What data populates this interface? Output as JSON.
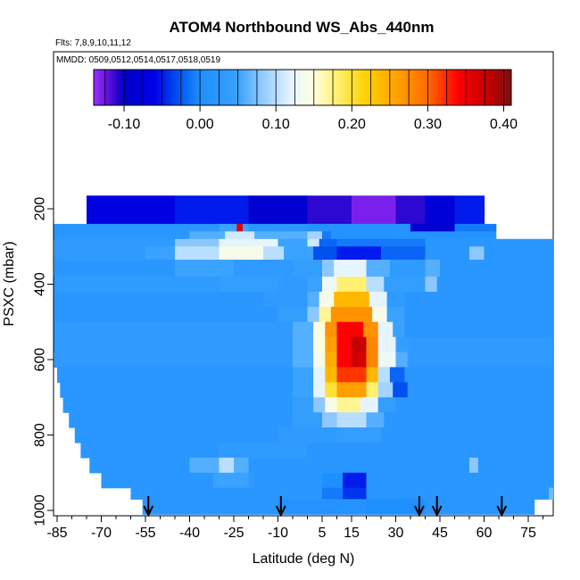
{
  "chart_data": {
    "type": "heatmap",
    "title": "ATOM4 Northbound WS_Abs_440nm",
    "subtitle_flights": "Flts: 7,8,9,10,11,12",
    "subtitle_dates": "MMDD: 0509,0512,0514,0517,0518,0519",
    "xlabel": "Latitude (deg N)",
    "ylabel": "PSXC (mbar)",
    "xlim": [
      -87,
      85
    ],
    "ylim": [
      1020,
      100
    ],
    "x_ticks": [
      -85,
      -70,
      -55,
      -40,
      -25,
      -10,
      5,
      15,
      30,
      45,
      60,
      75
    ],
    "y_ticks": [
      200,
      400,
      600,
      800,
      1000
    ],
    "colorbar": {
      "range": [
        -0.14,
        0.41
      ],
      "ticks": [
        "-0.10",
        "0.00",
        "0.10",
        "0.20",
        "0.30",
        "0.40"
      ],
      "tick_values": [
        -0.1,
        0.0,
        0.1,
        0.2,
        0.3,
        0.4
      ],
      "stops": [
        {
          "v": -0.14,
          "c": "#9b30ff"
        },
        {
          "v": -0.12,
          "c": "#5a10d8"
        },
        {
          "v": -0.1,
          "c": "#0000c8"
        },
        {
          "v": -0.06,
          "c": "#0000e8"
        },
        {
          "v": -0.03,
          "c": "#0050f0"
        },
        {
          "v": 0.0,
          "c": "#1e8fff"
        },
        {
          "v": 0.05,
          "c": "#3aa2ff"
        },
        {
          "v": 0.08,
          "c": "#8cc8ff"
        },
        {
          "v": 0.12,
          "c": "#e6f4ff"
        },
        {
          "v": 0.15,
          "c": "#ffffe0"
        },
        {
          "v": 0.18,
          "c": "#fff070"
        },
        {
          "v": 0.22,
          "c": "#ffd000"
        },
        {
          "v": 0.26,
          "c": "#ffa000"
        },
        {
          "v": 0.3,
          "c": "#ff6a00"
        },
        {
          "v": 0.34,
          "c": "#ff0000"
        },
        {
          "v": 0.38,
          "c": "#c40000"
        },
        {
          "v": 0.41,
          "c": "#7a1010"
        }
      ]
    },
    "arrows_latitude": [
      -54,
      -9,
      38,
      44,
      66
    ],
    "background_value": 0.02,
    "rows": [
      {
        "p_top": 165,
        "p_bot": 240,
        "x_start": -75,
        "x_end": 60,
        "pieces": [
          [
            -75,
            -45,
            -0.07
          ],
          [
            -45,
            -20,
            -0.05
          ],
          [
            -20,
            0,
            -0.09
          ],
          [
            0,
            15,
            -0.11
          ],
          [
            15,
            30,
            -0.13
          ],
          [
            30,
            40,
            -0.11
          ],
          [
            40,
            50,
            -0.08
          ],
          [
            50,
            60,
            -0.05
          ]
        ]
      },
      {
        "p_top": 240,
        "p_bot": 260,
        "x_start": -87,
        "x_end": 64,
        "pieces": [
          [
            -87,
            -30,
            0.02
          ],
          [
            -30,
            -24,
            0.05
          ],
          [
            -24,
            -22,
            0.36
          ],
          [
            -22,
            -20,
            0.05
          ],
          [
            -20,
            0,
            0.02
          ],
          [
            0,
            35,
            0.01
          ],
          [
            35,
            50,
            -0.09
          ],
          [
            50,
            64,
            -0.01
          ]
        ]
      },
      {
        "p_top": 260,
        "p_bot": 280,
        "x_start": -87,
        "x_end": 64,
        "pieces": [
          [
            -87,
            -40,
            0.02
          ],
          [
            -40,
            -28,
            0.06
          ],
          [
            -28,
            -18,
            0.11
          ],
          [
            -18,
            0,
            0.06
          ],
          [
            0,
            5,
            0.09
          ],
          [
            5,
            8,
            -0.01
          ],
          [
            8,
            64,
            0.01
          ]
        ]
      },
      {
        "p_top": 280,
        "p_bot": 300,
        "x_start": -86,
        "x_end": 85,
        "pieces": [
          [
            -86,
            -45,
            0.03
          ],
          [
            -45,
            -30,
            0.08
          ],
          [
            -30,
            -10,
            0.12
          ],
          [
            -10,
            0,
            0.05
          ],
          [
            0,
            4,
            0.11
          ],
          [
            4,
            10,
            -0.02
          ],
          [
            10,
            40,
            -0.01
          ],
          [
            40,
            85,
            0.02
          ]
        ]
      },
      {
        "p_top": 300,
        "p_bot": 335,
        "x_start": -86,
        "x_end": 85,
        "pieces": [
          [
            -86,
            -55,
            0.03
          ],
          [
            -55,
            -45,
            0.05
          ],
          [
            -45,
            -30,
            0.1
          ],
          [
            -30,
            -15,
            0.14
          ],
          [
            -15,
            -8,
            0.1
          ],
          [
            -8,
            2,
            0.05
          ],
          [
            2,
            10,
            -0.03
          ],
          [
            10,
            25,
            -0.05
          ],
          [
            25,
            40,
            -0.02
          ],
          [
            40,
            55,
            0.02
          ],
          [
            55,
            60,
            0.08
          ],
          [
            60,
            85,
            0.02
          ]
        ]
      },
      {
        "p_top": 335,
        "p_bot": 380,
        "x_start": -86,
        "x_end": 85,
        "pieces": [
          [
            -86,
            -45,
            0.02
          ],
          [
            -45,
            -25,
            0.05
          ],
          [
            -25,
            -5,
            0.03
          ],
          [
            -5,
            5,
            0.04
          ],
          [
            5,
            9,
            0.08
          ],
          [
            9,
            20,
            0.12
          ],
          [
            20,
            28,
            0.06
          ],
          [
            28,
            40,
            0.03
          ],
          [
            40,
            45,
            0.06
          ],
          [
            45,
            85,
            0.02
          ]
        ]
      },
      {
        "p_top": 380,
        "p_bot": 420,
        "x_start": -87,
        "x_end": 85,
        "pieces": [
          [
            -87,
            -30,
            0.03
          ],
          [
            -30,
            -10,
            0.04
          ],
          [
            -10,
            0,
            0.03
          ],
          [
            0,
            5,
            0.05
          ],
          [
            5,
            10,
            0.13
          ],
          [
            10,
            20,
            0.18
          ],
          [
            20,
            26,
            0.1
          ],
          [
            26,
            40,
            0.04
          ],
          [
            40,
            44,
            0.08
          ],
          [
            44,
            85,
            0.02
          ]
        ]
      },
      {
        "p_top": 420,
        "p_bot": 460,
        "x_start": -87,
        "x_end": 85,
        "pieces": [
          [
            -87,
            -15,
            0.02
          ],
          [
            -15,
            0,
            0.03
          ],
          [
            0,
            4,
            0.06
          ],
          [
            4,
            9,
            0.14
          ],
          [
            9,
            21,
            0.24
          ],
          [
            21,
            27,
            0.12
          ],
          [
            27,
            33,
            0.03
          ],
          [
            33,
            85,
            0.02
          ]
        ]
      },
      {
        "p_top": 460,
        "p_bot": 500,
        "x_start": -87,
        "x_end": 85,
        "pieces": [
          [
            -87,
            -10,
            0.02
          ],
          [
            -10,
            0,
            0.04
          ],
          [
            0,
            4,
            0.08
          ],
          [
            4,
            8,
            0.17
          ],
          [
            8,
            22,
            0.27
          ],
          [
            22,
            27,
            0.14
          ],
          [
            27,
            33,
            0.05
          ],
          [
            33,
            85,
            0.02
          ]
        ]
      },
      {
        "p_top": 500,
        "p_bot": 540,
        "x_start": -87,
        "x_end": 85,
        "pieces": [
          [
            -87,
            -5,
            0.03
          ],
          [
            -5,
            2,
            0.06
          ],
          [
            2,
            6,
            0.15
          ],
          [
            6,
            10,
            0.27
          ],
          [
            10,
            19,
            0.34
          ],
          [
            19,
            24,
            0.27
          ],
          [
            24,
            29,
            0.12
          ],
          [
            29,
            33,
            0.05
          ],
          [
            33,
            85,
            0.02
          ]
        ]
      },
      {
        "p_top": 540,
        "p_bot": 580,
        "x_start": -87,
        "x_end": 85,
        "pieces": [
          [
            -87,
            -5,
            0.03
          ],
          [
            -5,
            2,
            0.06
          ],
          [
            2,
            6,
            0.15
          ],
          [
            6,
            10,
            0.26
          ],
          [
            10,
            15,
            0.34
          ],
          [
            15,
            20,
            0.38
          ],
          [
            20,
            24,
            0.28
          ],
          [
            24,
            30,
            0.12
          ],
          [
            30,
            34,
            0.04
          ],
          [
            34,
            85,
            0.03
          ]
        ]
      },
      {
        "p_top": 580,
        "p_bot": 620,
        "x_start": -86,
        "x_end": 85,
        "pieces": [
          [
            -86,
            -5,
            0.03
          ],
          [
            -5,
            2,
            0.06
          ],
          [
            2,
            6,
            0.14
          ],
          [
            6,
            10,
            0.25
          ],
          [
            10,
            15,
            0.34
          ],
          [
            15,
            20,
            0.37
          ],
          [
            20,
            24,
            0.28
          ],
          [
            24,
            30,
            0.13
          ],
          [
            30,
            34,
            0.06
          ],
          [
            34,
            85,
            0.03
          ]
        ]
      },
      {
        "p_top": 620,
        "p_bot": 660,
        "x_start": -85,
        "x_end": 85,
        "pieces": [
          [
            -85,
            -5,
            0.02
          ],
          [
            -5,
            2,
            0.05
          ],
          [
            2,
            6,
            0.12
          ],
          [
            6,
            10,
            0.24
          ],
          [
            10,
            20,
            0.32
          ],
          [
            20,
            24,
            0.24
          ],
          [
            24,
            28,
            0.1
          ],
          [
            28,
            33,
            -0.02
          ],
          [
            33,
            85,
            0.02
          ]
        ]
      },
      {
        "p_top": 660,
        "p_bot": 700,
        "x_start": -84,
        "x_end": 85,
        "pieces": [
          [
            -84,
            -5,
            0.02
          ],
          [
            -5,
            2,
            0.05
          ],
          [
            2,
            6,
            0.12
          ],
          [
            6,
            10,
            0.2
          ],
          [
            10,
            20,
            0.26
          ],
          [
            20,
            24,
            0.18
          ],
          [
            24,
            29,
            0.09
          ],
          [
            29,
            34,
            -0.03
          ],
          [
            34,
            85,
            0.02
          ]
        ]
      },
      {
        "p_top": 700,
        "p_bot": 740,
        "x_start": -83,
        "x_end": 85,
        "pieces": [
          [
            -83,
            -5,
            0.02
          ],
          [
            -5,
            2,
            0.04
          ],
          [
            2,
            6,
            0.08
          ],
          [
            6,
            10,
            0.14
          ],
          [
            10,
            18,
            0.17
          ],
          [
            18,
            24,
            0.12
          ],
          [
            24,
            30,
            0.04
          ],
          [
            30,
            85,
            0.02
          ]
        ]
      },
      {
        "p_top": 740,
        "p_bot": 780,
        "x_start": -81,
        "x_end": 85,
        "pieces": [
          [
            -81,
            -5,
            0.02
          ],
          [
            -5,
            5,
            0.04
          ],
          [
            5,
            10,
            0.08
          ],
          [
            10,
            20,
            0.1
          ],
          [
            20,
            26,
            0.06
          ],
          [
            26,
            85,
            0.02
          ]
        ]
      },
      {
        "p_top": 780,
        "p_bot": 820,
        "x_start": -79,
        "x_end": 85,
        "pieces": [
          [
            -79,
            -10,
            0.02
          ],
          [
            -10,
            10,
            0.03
          ],
          [
            10,
            25,
            0.04
          ],
          [
            25,
            85,
            0.02
          ]
        ]
      },
      {
        "p_top": 820,
        "p_bot": 860,
        "x_start": -77,
        "x_end": 85,
        "pieces": [
          [
            -77,
            -30,
            0.02
          ],
          [
            -30,
            0,
            0.03
          ],
          [
            0,
            85,
            0.02
          ]
        ]
      },
      {
        "p_top": 860,
        "p_bot": 900,
        "x_start": -74,
        "x_end": 85,
        "pieces": [
          [
            -74,
            -40,
            0.02
          ],
          [
            -40,
            -30,
            0.06
          ],
          [
            -30,
            -25,
            0.1
          ],
          [
            -25,
            -20,
            0.06
          ],
          [
            -20,
            55,
            0.02
          ],
          [
            55,
            58,
            0.08
          ],
          [
            58,
            85,
            0.02
          ]
        ]
      },
      {
        "p_top": 900,
        "p_bot": 940,
        "x_start": -70,
        "x_end": 85,
        "pieces": [
          [
            -70,
            -32,
            0.02
          ],
          [
            -32,
            -20,
            0.05
          ],
          [
            -20,
            -18,
            0.03
          ],
          [
            -18,
            5,
            0.02
          ],
          [
            5,
            12,
            0.0
          ],
          [
            12,
            20,
            -0.05
          ],
          [
            20,
            85,
            0.02
          ]
        ]
      },
      {
        "p_top": 940,
        "p_bot": 970,
        "x_start": -60,
        "x_end": 85,
        "pieces": [
          [
            -60,
            5,
            0.02
          ],
          [
            5,
            12,
            -0.01
          ],
          [
            12,
            20,
            -0.04
          ],
          [
            20,
            82,
            0.02
          ],
          [
            82,
            85,
            0.07
          ]
        ]
      },
      {
        "p_top": 970,
        "p_bot": 1010,
        "x_start": -56,
        "x_end": 77,
        "pieces": [
          [
            -56,
            -10,
            0.02
          ],
          [
            -10,
            20,
            0.01
          ],
          [
            20,
            40,
            0.0
          ],
          [
            40,
            77,
            0.02
          ]
        ]
      }
    ]
  }
}
